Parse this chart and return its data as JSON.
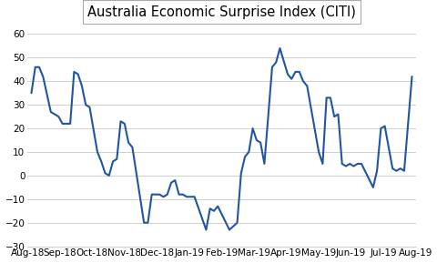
{
  "title": "Australia Economic Surprise Index (CITI)",
  "line_color": "#2155a3",
  "line_width": 1.5,
  "background_color": "#ffffff",
  "grid_color": "#c8c8c8",
  "ylim": [
    -30,
    65
  ],
  "yticks": [
    -30,
    -20,
    -10,
    0,
    10,
    20,
    30,
    40,
    50,
    60
  ],
  "x_labels": [
    "Aug-18",
    "Sep-18",
    "Oct-18",
    "Nov-18",
    "Dec-18",
    "Jan-19",
    "Feb-19",
    "Mar-19",
    "Apr-19",
    "May-19",
    "Jun-19",
    "Jul-19",
    "Aug-19"
  ],
  "title_fontsize": 10.5,
  "tick_fontsize": 7.5,
  "values": [
    35,
    46,
    46,
    42,
    27,
    26,
    25,
    22,
    22,
    44,
    43,
    38,
    30,
    29,
    10,
    6,
    1,
    0,
    6,
    7,
    23,
    22,
    14,
    12,
    -20,
    -20,
    -8,
    -8,
    -8,
    -9,
    -8,
    -3,
    -2,
    -8,
    -8,
    -9,
    -9,
    -9,
    -23,
    -14,
    -15,
    -13,
    -23,
    -20,
    1,
    8,
    10,
    20,
    15,
    14,
    5,
    46,
    48,
    54,
    43,
    41,
    44,
    44,
    40,
    38,
    10,
    5,
    33,
    33,
    25,
    26,
    5,
    4,
    5,
    4,
    5,
    5,
    -5,
    2,
    20,
    21,
    3,
    2,
    3,
    2,
    42
  ],
  "x_positions": [
    0.0,
    0.5,
    1.0,
    1.5,
    2.5,
    3.0,
    3.5,
    4.0,
    5.0,
    5.5,
    6.0,
    6.5,
    7.0,
    7.5,
    8.5,
    9.0,
    9.5,
    10.0,
    10.5,
    11.0,
    11.5,
    12.0,
    12.5,
    13.0,
    14.5,
    15.0,
    15.5,
    16.0,
    16.5,
    17.0,
    17.5,
    18.0,
    18.5,
    19.0,
    19.5,
    20.0,
    20.5,
    21.0,
    22.5,
    23.0,
    23.5,
    24.0,
    25.5,
    26.5,
    27.0,
    27.5,
    28.0,
    28.5,
    29.0,
    29.5,
    30.0,
    31.0,
    31.5,
    32.0,
    33.0,
    33.5,
    34.0,
    34.5,
    35.0,
    35.5,
    37.0,
    37.5,
    38.0,
    38.5,
    39.0,
    39.5,
    40.0,
    40.5,
    41.0,
    41.5,
    42.0,
    42.5,
    44.0,
    44.5,
    45.0,
    45.5,
    46.5,
    47.0,
    47.5,
    48.0,
    49.0
  ]
}
